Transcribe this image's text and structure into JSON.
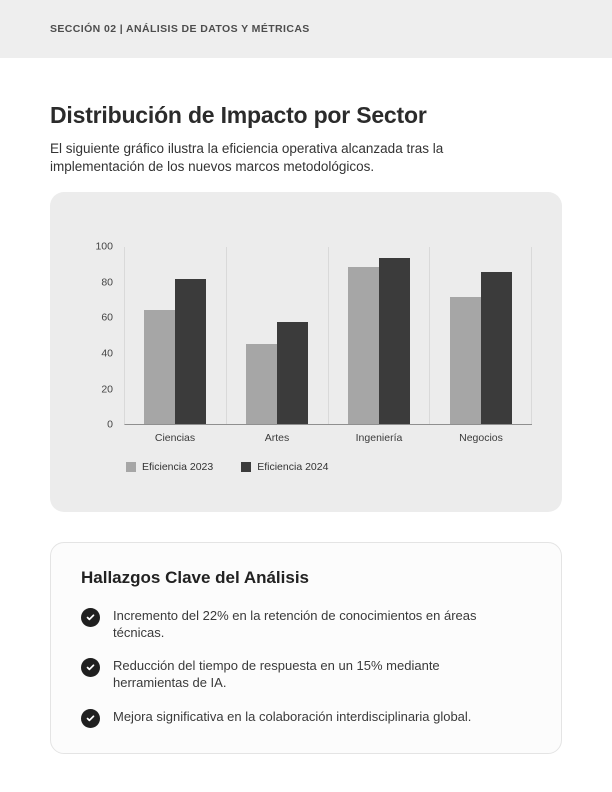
{
  "header": {
    "label": "SECCIÓN 02 | ANÁLISIS DE DATOS Y MÉTRICAS"
  },
  "title": "Distribución de Impacto por Sector",
  "intro": "El siguiente gráfico ilustra la eficiencia operativa alcanzada tras la implementación de los nuevos marcos metodológicos.",
  "chart_data": {
    "type": "bar",
    "categories": [
      "Ciencias",
      "Artes",
      "Ingeniería",
      "Negocios"
    ],
    "series": [
      {
        "name": "Eficiencia 2023",
        "color": "#a6a6a6",
        "values": [
          64,
          45,
          88,
          71
        ]
      },
      {
        "name": "Eficiencia 2024",
        "color": "#3b3b3b",
        "values": [
          81,
          57,
          93,
          85
        ]
      }
    ],
    "ylim": [
      0,
      100
    ],
    "yticks": [
      0,
      20,
      40,
      60,
      80,
      100
    ],
    "grid": "vertical-separators",
    "legend_position": "bottom-left"
  },
  "findings": {
    "title": "Hallazgos Clave del Análisis",
    "items": [
      {
        "icon": "check-circle",
        "text": "Incremento del 22% en la retención de conocimientos en áreas técnicas."
      },
      {
        "icon": "check-circle",
        "text": "Reducción del tiempo de respuesta en un 15% mediante herramientas de IA."
      },
      {
        "icon": "check-circle",
        "text": "Mejora significativa en la colaboración interdisciplinaria global."
      }
    ]
  },
  "colors": {
    "header_bg": "#eeeeee",
    "chart_card_bg": "#ececec",
    "findings_card_bg": "#fcfcfc",
    "bar_2023": "#a6a6a6",
    "bar_2024": "#3b3b3b",
    "check_circle": "#1f1f1f"
  }
}
